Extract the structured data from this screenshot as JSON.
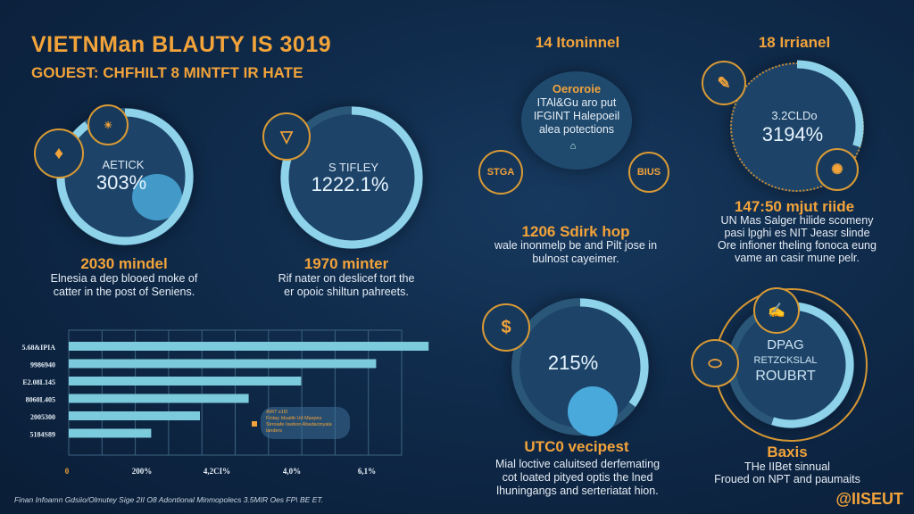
{
  "header": {
    "title": "VIETNMan BLAUTY IS 3019",
    "subtitle": "GOUEST: CHFHILT 8 MINTFT IR HATE"
  },
  "panels": [
    {
      "label": "AETICK",
      "value": "303%",
      "heading": "2030 mindel",
      "desc": [
        "Elnesia a dep blooed moke of",
        "catter in the post of Seniens."
      ],
      "progress": 0.9
    },
    {
      "label": "S TIFLEY",
      "value": "1222.1%",
      "heading": "1970 minter",
      "desc": [
        "Rif nater on deslicef tort the",
        "er opoic shiltun pahreets."
      ],
      "progress": 0.85
    },
    {
      "top": "14 Itoninnel",
      "center_title": "Oeroroie",
      "center_lines": [
        "ITAl&Gu aro put",
        "IFGINT Halepoeil",
        "alea potections"
      ],
      "badges": [
        "STGA",
        "BIUS"
      ],
      "heading": "1206 Sdirk hop",
      "desc": [
        "wale inonmelp be and Pilt jose in",
        "bulnost cayeimer."
      ]
    },
    {
      "top": "18 Irrianel",
      "label": "3.2CLDo",
      "value": "3194%",
      "heading": "147:50 mjut riide",
      "desc": [
        "UN Mas Salger hilide scomeny",
        "pasi lpghi es NIT Jeasr slinde",
        "Ore infioner theling fonoca eung",
        "vame an casir mune pelr."
      ],
      "progress": 0.3
    },
    {
      "value": "215%",
      "heading": "UTC0 vecipest",
      "desc": [
        "Mial loctive caluitsed derfemating",
        "cot loated pityed optis the lned",
        "lhuningangs and serteriatat hion."
      ],
      "progress": 0.35
    },
    {
      "lines": [
        "DPAG",
        "RETZCKSLAL",
        "ROUBRT"
      ],
      "heading": "Baxis",
      "desc": [
        "THe IIBet sinnual",
        "Froued on NPT and paumaits"
      ],
      "progress": 0.55
    }
  ],
  "chart_data": {
    "type": "bar",
    "orientation": "horizontal",
    "categories": [
      "5.68&IPIA",
      "9986940",
      "E2.08L145",
      "8060L405",
      "2005300",
      "5184S89"
    ],
    "values": [
      96,
      82,
      62,
      48,
      35,
      22
    ],
    "xlim": [
      0,
      100
    ],
    "xticks": [
      0,
      20,
      40,
      60,
      80
    ],
    "xtick_labels": [
      "0",
      "200%",
      "4,2CI%",
      "4,0%",
      "6,1%"
    ],
    "tooltip": [
      "AIRT s1I0",
      "Fintay Iduaitb Ud Maspes",
      "Sirroiafe Iswbon Abadacinyala",
      "landers"
    ],
    "color": "#7ccbdc"
  },
  "footnote": "Finan Infoamn Gdsiio/Olmutey Sige 2II O8 Adontional Minmopolecs 3.5MIR Oes FP\\ BE ET.",
  "brand": "@IISEUT",
  "colors": {
    "accent": "#f2a33a",
    "ring": "#8fd3ea",
    "bg": "#0f2a4a"
  }
}
